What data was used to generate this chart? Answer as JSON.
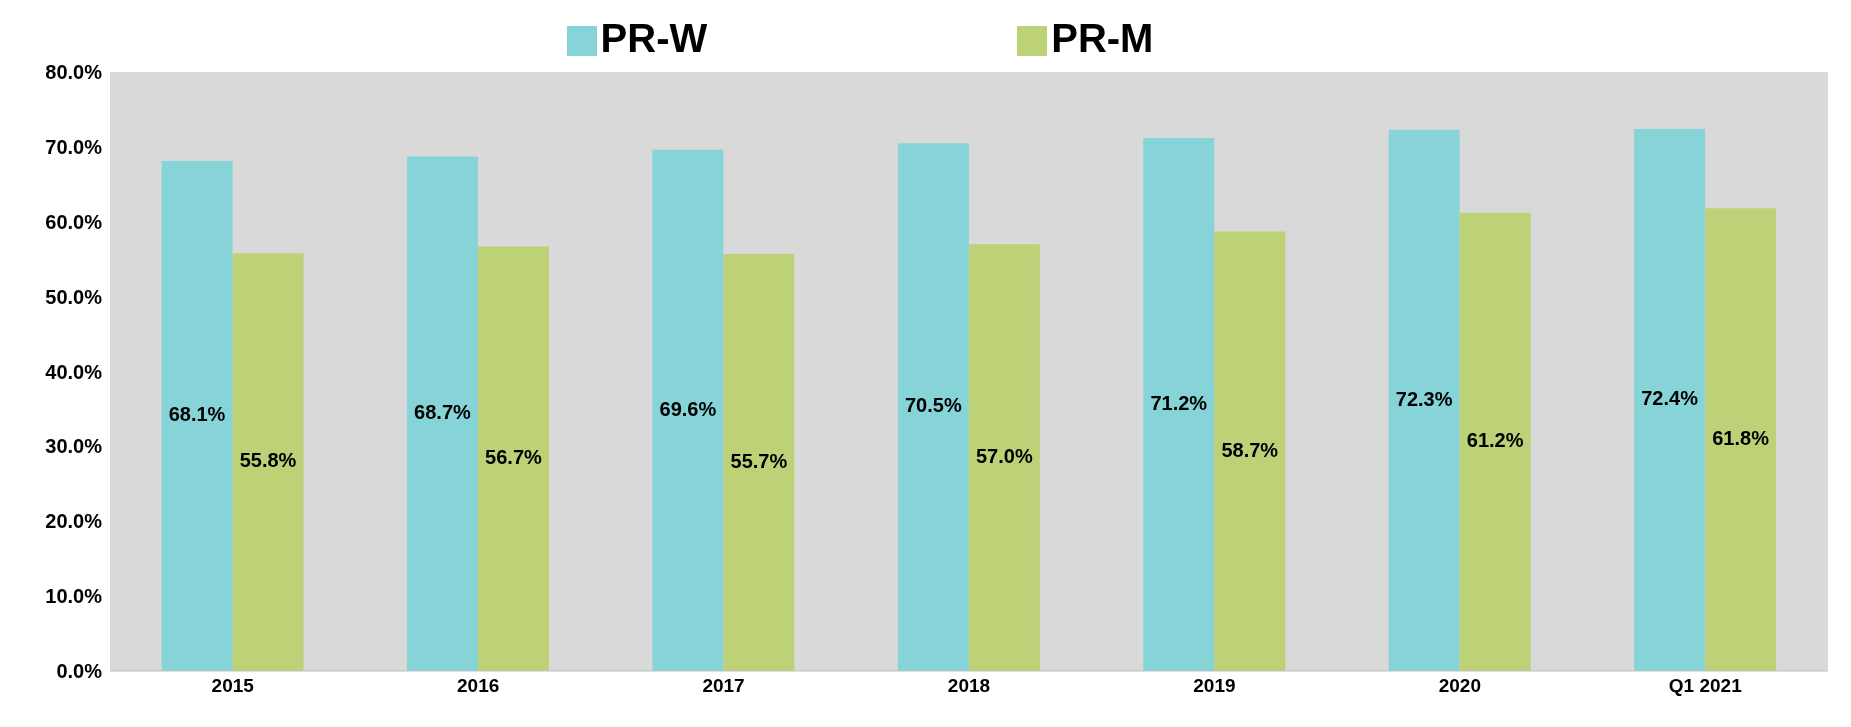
{
  "chart_data": {
    "type": "bar",
    "categories": [
      "2015",
      "2016",
      "2017",
      "2018",
      "2019",
      "2020",
      "Q1 2021"
    ],
    "series": [
      {
        "name": "PR-W",
        "color": "#86d4d8",
        "values": [
          68.1,
          68.7,
          69.6,
          70.5,
          71.2,
          72.3,
          72.4
        ],
        "value_labels": [
          "68.1%",
          "68.7%",
          "69.6%",
          "70.5%",
          "71.2%",
          "72.3%",
          "72.4%"
        ]
      },
      {
        "name": "PR-M",
        "color": "#bdd277",
        "values": [
          55.8,
          56.7,
          55.7,
          57.0,
          58.7,
          61.2,
          61.8
        ],
        "value_labels": [
          "55.8%",
          "56.7%",
          "55.7%",
          "57.0%",
          "58.7%",
          "61.2%",
          "61.8%"
        ]
      }
    ],
    "ylim": [
      0,
      80
    ],
    "yticks": [
      {
        "value": 0,
        "label": "0.0%"
      },
      {
        "value": 10,
        "label": "10.0%"
      },
      {
        "value": 20,
        "label": "20.0%"
      },
      {
        "value": 30,
        "label": "30.0%"
      },
      {
        "value": 40,
        "label": "40.0%"
      },
      {
        "value": 50,
        "label": "50.0%"
      },
      {
        "value": 60,
        "label": "60.0%"
      },
      {
        "value": 70,
        "label": "70.0%"
      },
      {
        "value": 80,
        "label": "80.0%"
      }
    ],
    "grid": false,
    "legend": "top"
  }
}
